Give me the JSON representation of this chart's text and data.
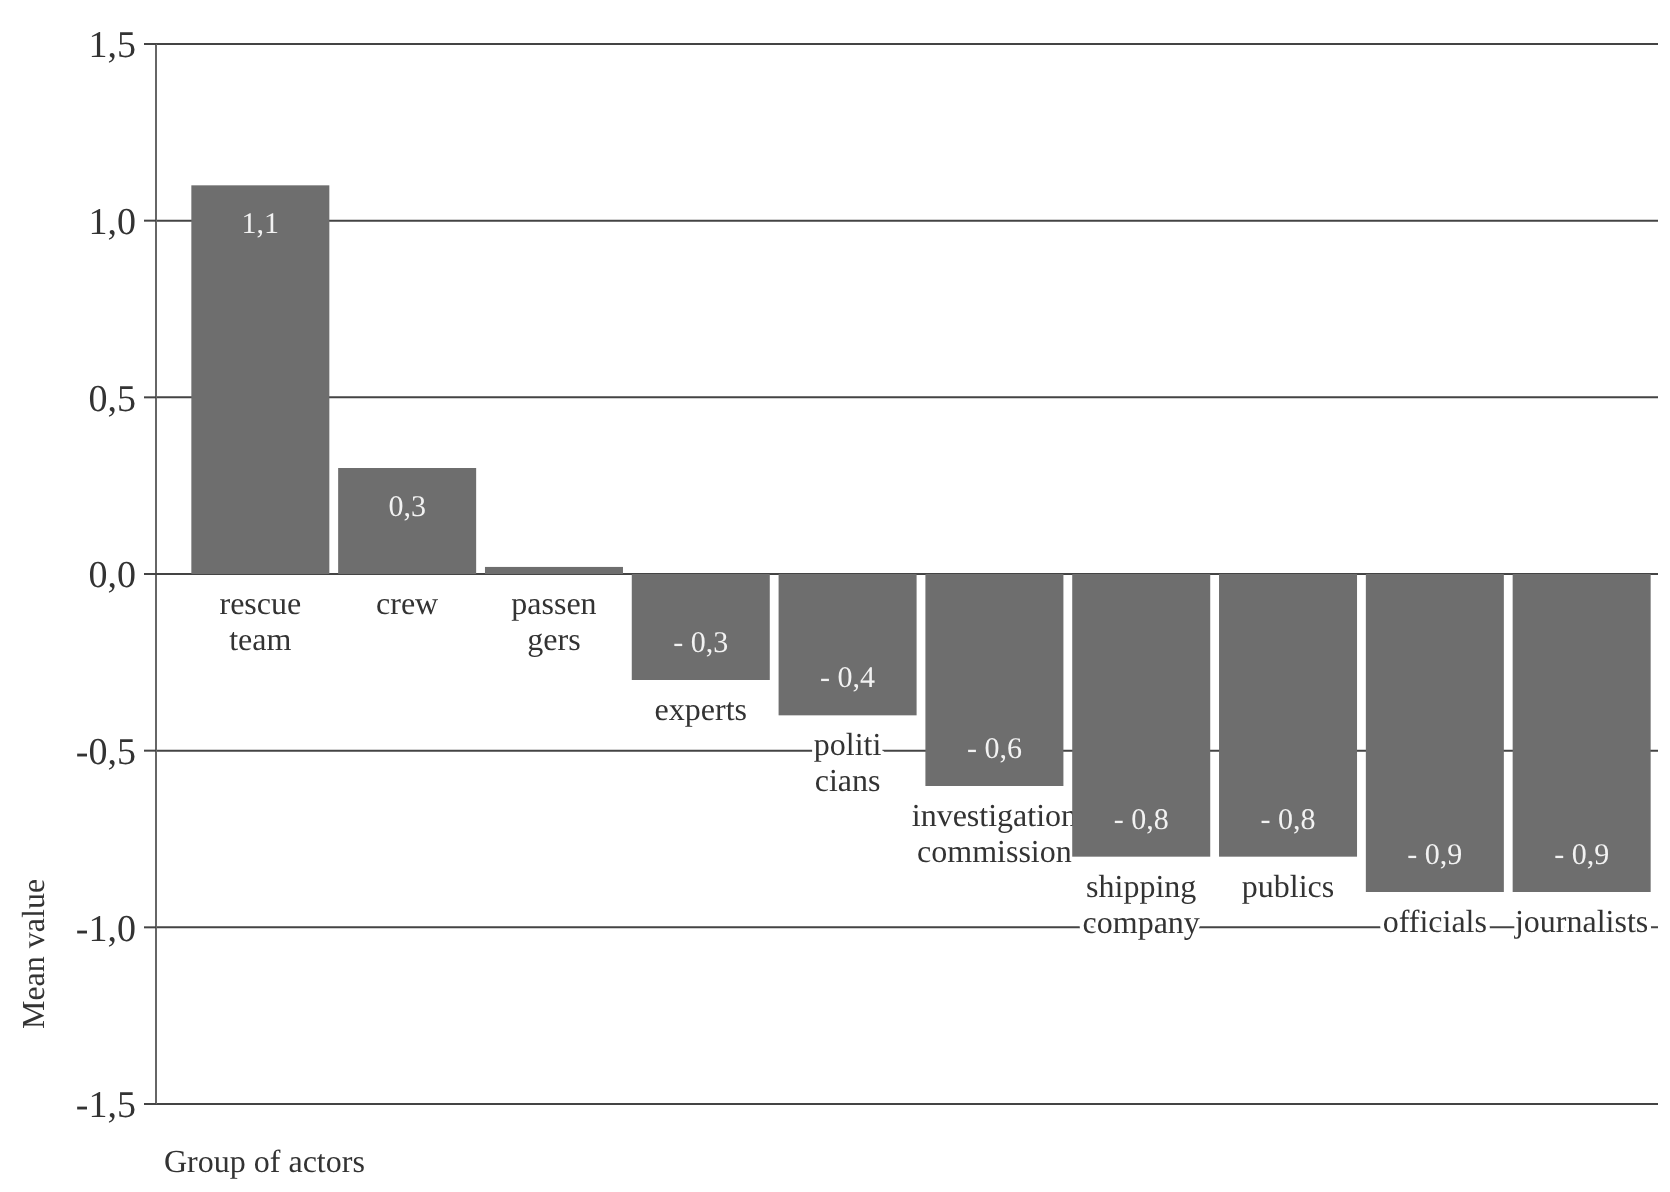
{
  "chart_data": {
    "type": "bar",
    "xlabel": "Group of actors",
    "ylabel": "Mean value",
    "categories": [
      "rescue\nteam",
      "crew",
      "passen\ngers",
      "experts",
      "politi\ncians",
      "investigation\ncommission",
      "shipping\ncompany",
      "publics",
      "officials",
      "journalists"
    ],
    "values": [
      1.1,
      0.3,
      0.02,
      -0.3,
      -0.4,
      -0.6,
      -0.8,
      -0.8,
      -0.9,
      -0.9
    ],
    "value_labels": [
      "1,1",
      "0,3",
      null,
      "- 0,3",
      "- 0,4",
      "- 0,6",
      "- 0,8",
      "- 0,8",
      "- 0,9",
      "- 0,9"
    ],
    "color": "#6e6e6e",
    "ylim": [
      -1.5,
      1.5
    ],
    "yticks": [
      {
        "value": -1.5,
        "label": "-1,5"
      },
      {
        "value": -1,
        "label": "-1,0"
      },
      {
        "value": -0.5,
        "label": "-0,5"
      },
      {
        "value": 0,
        "label": "0,0"
      },
      {
        "value": 0.5,
        "label": "0,5"
      },
      {
        "value": 1,
        "label": "1,0"
      },
      {
        "value": 1.5,
        "label": "1,5"
      }
    ],
    "grid": "y"
  }
}
